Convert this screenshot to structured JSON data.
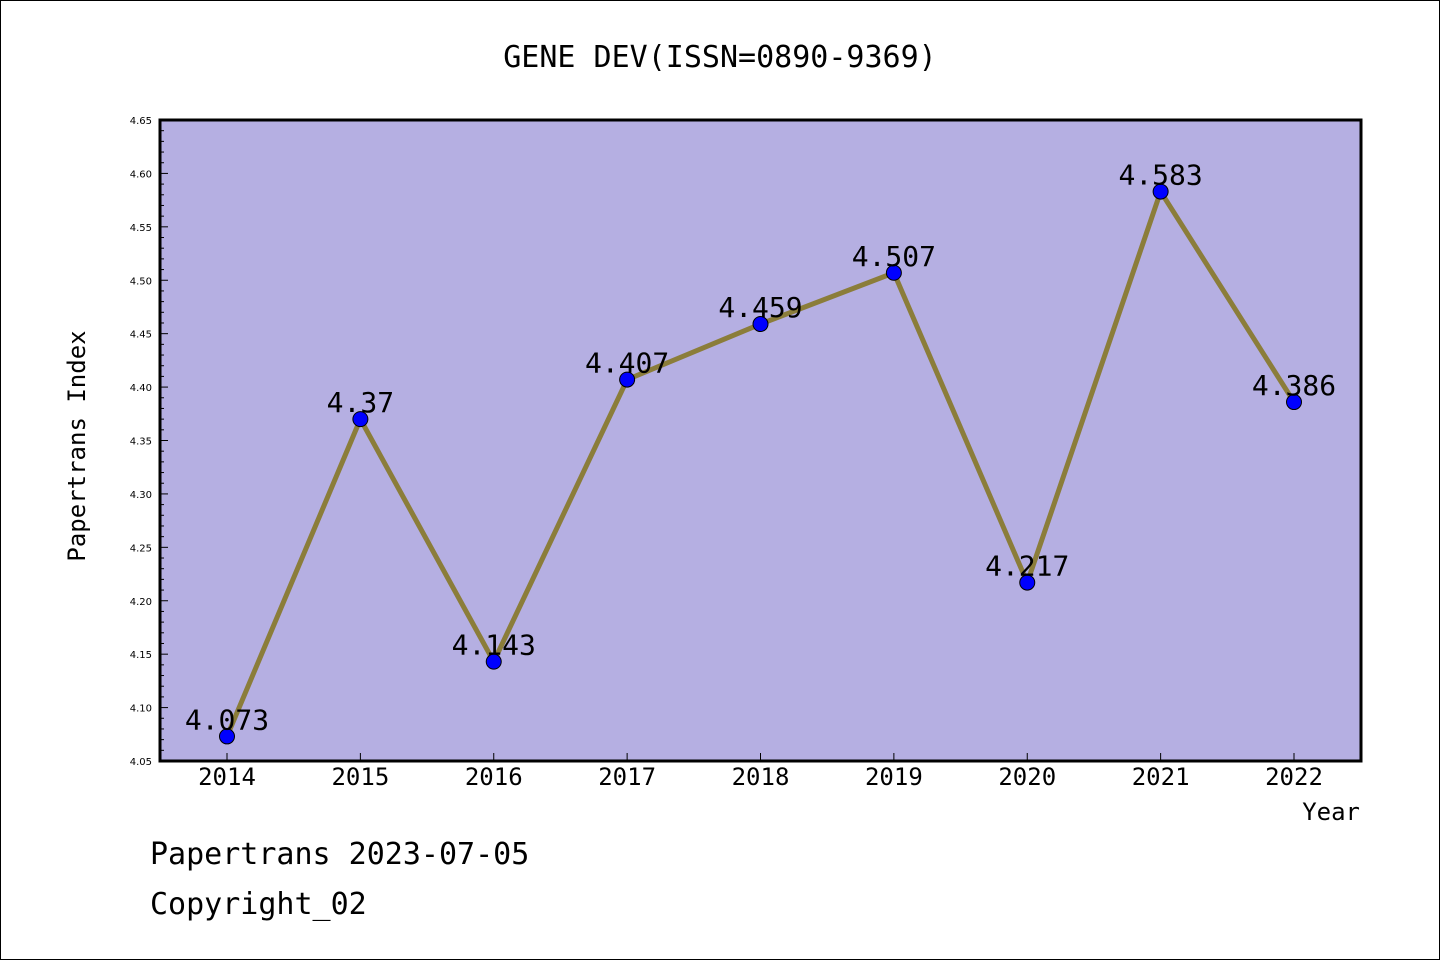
{
  "chart_data": {
    "type": "line",
    "title": "GENE DEV(ISSN=0890-9369)",
    "xlabel": "Year",
    "ylabel": "Papertrans Index",
    "categories": [
      "2014",
      "2015",
      "2016",
      "2017",
      "2018",
      "2019",
      "2020",
      "2021",
      "2022"
    ],
    "series": [
      {
        "values": [
          4.073,
          4.37,
          4.143,
          4.407,
          4.459,
          4.507,
          4.217,
          4.583,
          4.386
        ],
        "data_labels": [
          "4.073",
          "4.37",
          "4.143",
          "4.407",
          "4.459",
          "4.507",
          "4.217",
          "4.583",
          "4.386"
        ],
        "line_color": "#8B7D3A",
        "marker_color": "#0000FF"
      }
    ],
    "ylim": [
      4.05,
      4.65
    ],
    "yticks": [
      "4.05",
      "4.10",
      "4.15",
      "4.20",
      "4.25",
      "4.30",
      "4.35",
      "4.40",
      "4.45",
      "4.50",
      "4.55",
      "4.60",
      "4.65"
    ],
    "grid": false,
    "legend": "none",
    "plot_background": "#B5AFE2"
  },
  "footer": {
    "line1": "Papertrans 2023-07-05",
    "line2": "Copyright_02"
  }
}
